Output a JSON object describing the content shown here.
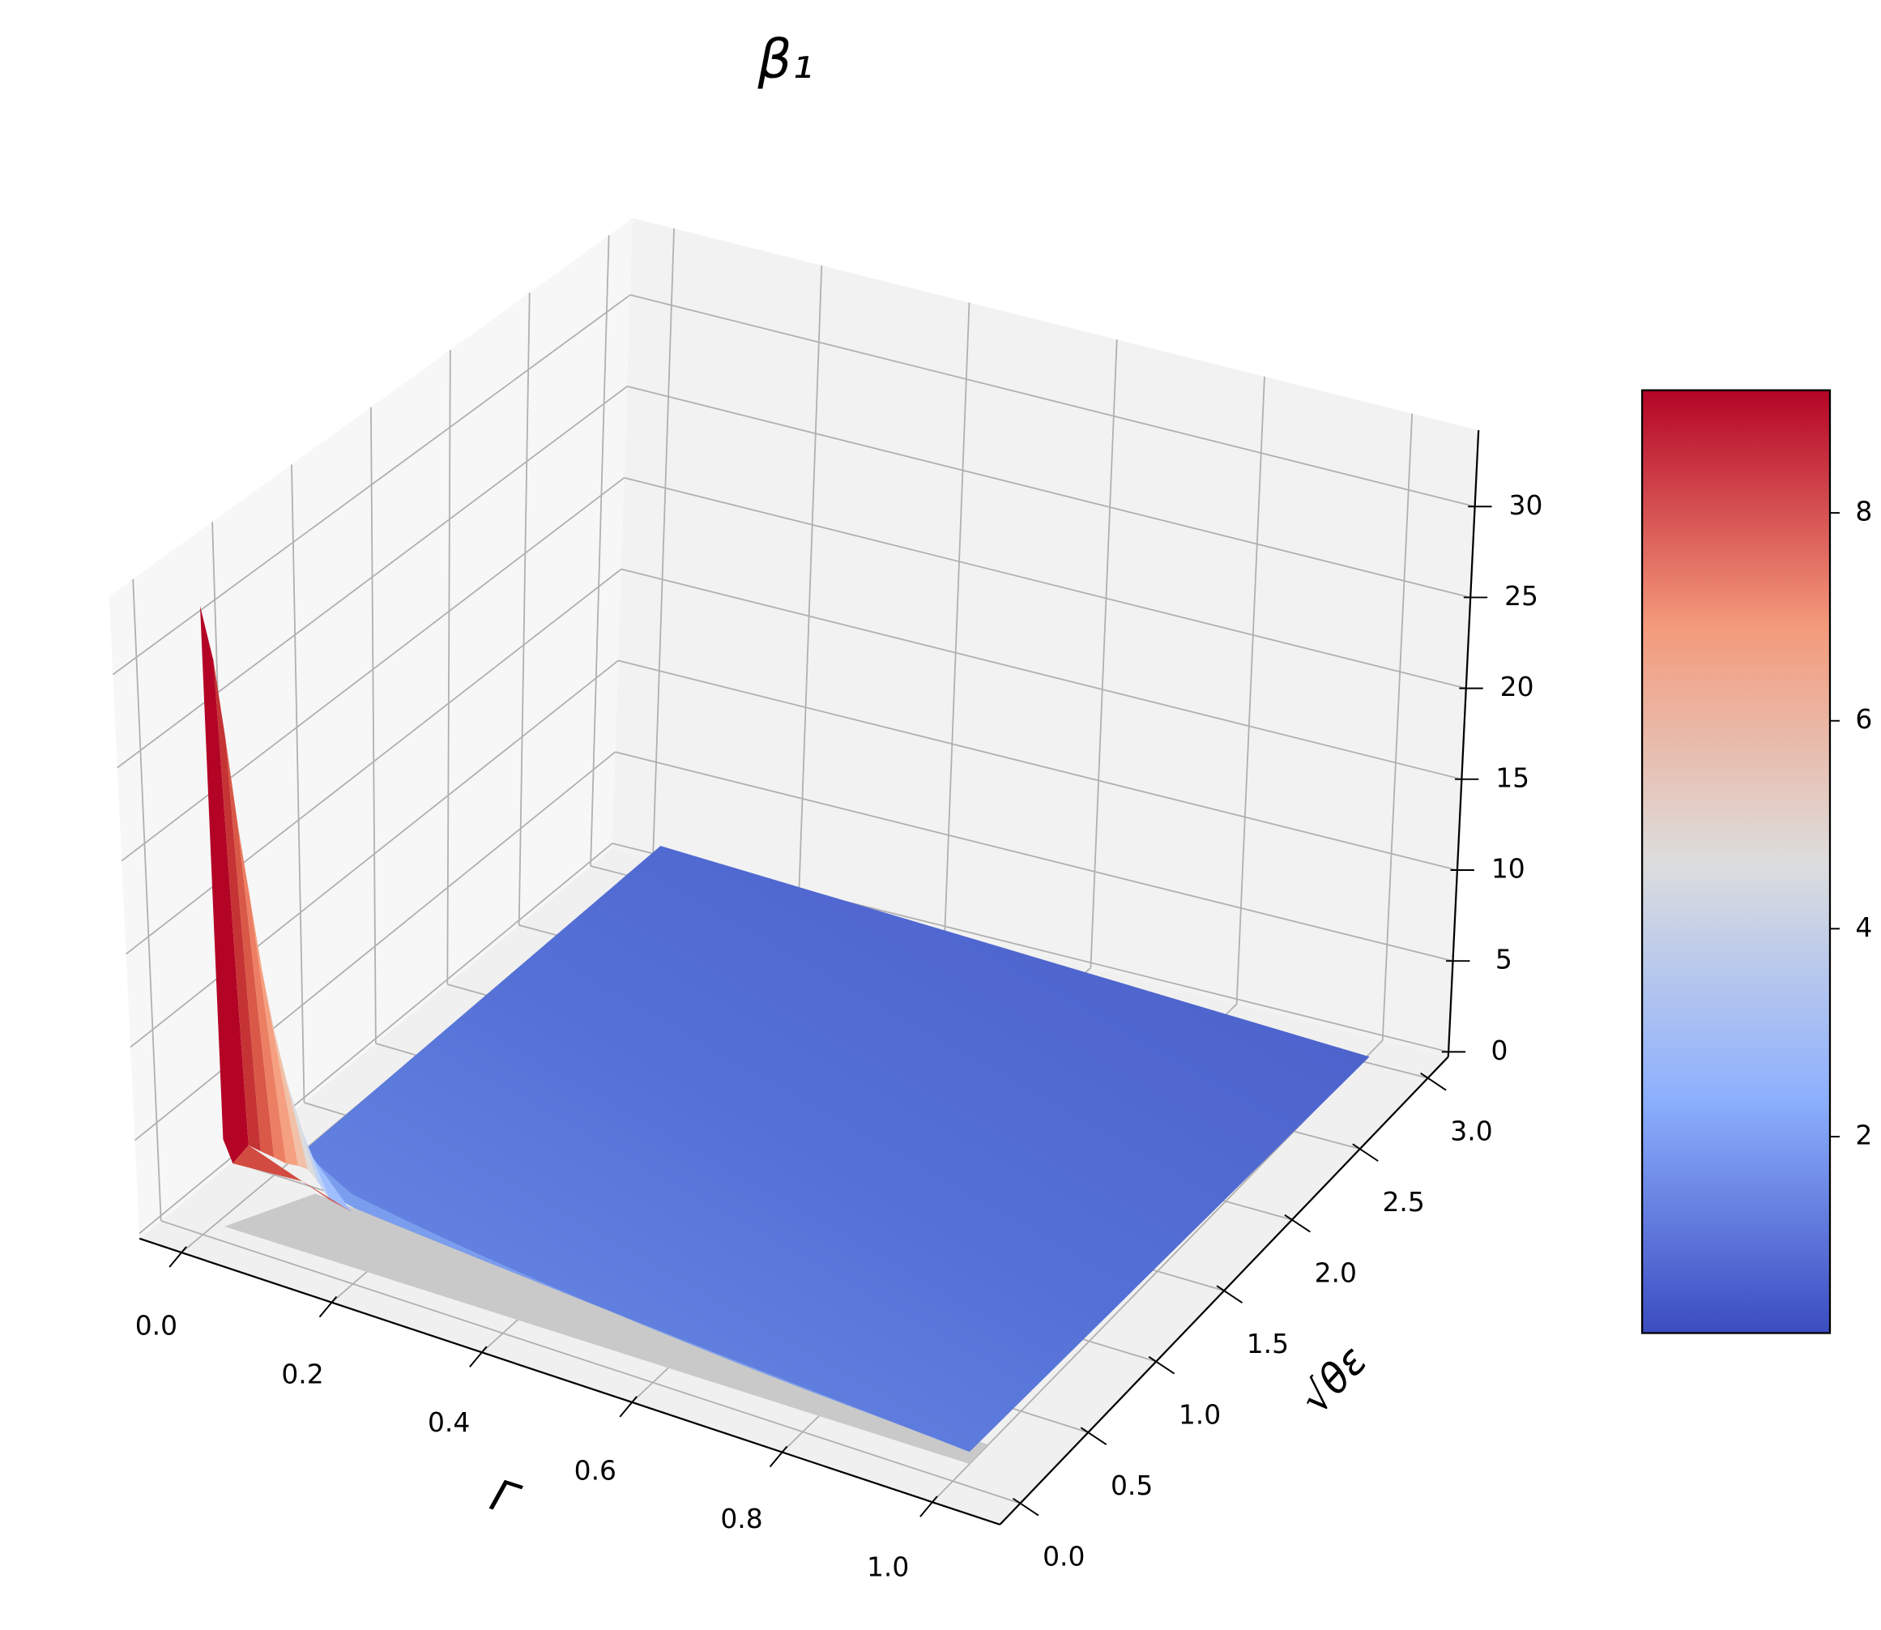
{
  "chart_data": {
    "type": "surface3d",
    "title": "β₁",
    "xlabel": "Γ",
    "ylabel": "√θε",
    "xlim": [
      -0.056,
      1.09
    ],
    "xticks": [
      {
        "value": 0,
        "label": "0.0"
      },
      0.2,
      0.4,
      0.6,
      0.8,
      {
        "value": 1,
        "label": "1.0"
      }
    ],
    "ylim": [
      -0.15,
      3.15
    ],
    "yticks": [
      {
        "value": 0,
        "label": "0.0"
      },
      0.5,
      {
        "value": 1,
        "label": "1.0"
      },
      1.5,
      {
        "value": 2,
        "label": "2.0"
      },
      2.5,
      {
        "value": 3,
        "label": "3.0"
      }
    ],
    "zlim": [
      -0.27,
      34.2
    ],
    "zticks": [
      0,
      5,
      10,
      15,
      20,
      25,
      30
    ],
    "colormap": "coolwarm",
    "colorbar": {
      "lim": [
        0.11,
        9.18
      ],
      "ticks": [
        2,
        4,
        6,
        8
      ]
    },
    "grid": true
  }
}
